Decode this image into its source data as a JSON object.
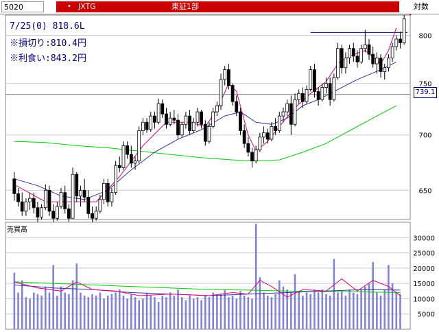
{
  "header": {
    "code": "5020",
    "marker": "•",
    "name": "JXTG",
    "market": "東証1部",
    "scale_label": "対数"
  },
  "info": {
    "line1": "7/25(0) 818.6L",
    "line2": "※損切り:810.4円",
    "line3": "※利食い:843.2円"
  },
  "price_box": "739.1",
  "volume_label": "売買高",
  "colors": {
    "header_bar": "#cc0000",
    "info_text": "#000080",
    "up_candle": "#ffffff",
    "down_candle": "#000000",
    "ma_short": "#e0007a",
    "ma_mid": "#3333aa",
    "ma_long": "#00cc00",
    "volume_bar": "#8080e0",
    "marker": "#ff0000"
  },
  "chart_data": [
    {
      "type": "candlestick",
      "title": "",
      "scale": "log",
      "ylim": [
        625,
        822
      ],
      "yticks": [
        650,
        700,
        750,
        800
      ],
      "grid": true,
      "resistance_line": 803,
      "candles": [
        [
          660,
          666,
          641,
          647
        ],
        [
          647,
          652,
          636,
          640
        ],
        [
          640,
          648,
          628,
          632
        ],
        [
          632,
          643,
          628,
          640
        ],
        [
          640,
          648,
          633,
          643
        ],
        [
          643,
          648,
          630,
          635
        ],
        [
          635,
          640,
          623,
          627
        ],
        [
          627,
          638,
          625,
          635
        ],
        [
          635,
          655,
          633,
          650
        ],
        [
          650,
          654,
          628,
          632
        ],
        [
          632,
          638,
          623,
          626
        ],
        [
          626,
          640,
          624,
          636
        ],
        [
          636,
          652,
          634,
          648
        ],
        [
          648,
          654,
          630,
          634
        ],
        [
          634,
          638,
          622,
          626
        ],
        [
          626,
          670,
          626,
          664
        ],
        [
          664,
          666,
          640,
          645
        ],
        [
          645,
          654,
          636,
          650
        ],
        [
          650,
          660,
          640,
          644
        ],
        [
          644,
          650,
          626,
          630
        ],
        [
          630,
          636,
          622,
          626
        ],
        [
          626,
          636,
          624,
          632
        ],
        [
          632,
          646,
          630,
          642
        ],
        [
          642,
          660,
          638,
          656
        ],
        [
          656,
          660,
          636,
          640
        ],
        [
          640,
          652,
          636,
          648
        ],
        [
          648,
          676,
          646,
          672
        ],
        [
          672,
          680,
          666,
          670
        ],
        [
          670,
          694,
          668,
          690
        ],
        [
          690,
          694,
          678,
          682
        ],
        [
          682,
          690,
          670,
          674
        ],
        [
          674,
          680,
          668,
          676
        ],
        [
          676,
          708,
          674,
          704
        ],
        [
          704,
          716,
          700,
          712
        ],
        [
          712,
          716,
          702,
          705
        ],
        [
          705,
          722,
          703,
          718
        ],
        [
          718,
          722,
          706,
          712
        ],
        [
          712,
          735,
          710,
          730
        ],
        [
          730,
          734,
          716,
          720
        ],
        [
          720,
          726,
          706,
          710
        ],
        [
          710,
          722,
          708,
          716
        ],
        [
          716,
          724,
          710,
          714
        ],
        [
          714,
          720,
          696,
          700
        ],
        [
          700,
          712,
          698,
          710
        ],
        [
          710,
          722,
          706,
          718
        ],
        [
          718,
          724,
          700,
          704
        ],
        [
          704,
          716,
          702,
          712
        ],
        [
          712,
          726,
          708,
          722
        ],
        [
          722,
          724,
          706,
          710
        ],
        [
          710,
          714,
          690,
          694
        ],
        [
          694,
          712,
          692,
          708
        ],
        [
          708,
          726,
          706,
          722
        ],
        [
          722,
          732,
          718,
          728
        ],
        [
          728,
          760,
          724,
          754
        ],
        [
          754,
          768,
          748,
          764
        ],
        [
          764,
          770,
          744,
          748
        ],
        [
          748,
          750,
          728,
          732
        ],
        [
          732,
          738,
          718,
          722
        ],
        [
          722,
          726,
          700,
          704
        ],
        [
          704,
          710,
          688,
          692
        ],
        [
          692,
          698,
          680,
          684
        ],
        [
          684,
          688,
          670,
          676
        ],
        [
          676,
          690,
          674,
          686
        ],
        [
          686,
          702,
          684,
          698
        ],
        [
          698,
          708,
          692,
          702
        ],
        [
          702,
          706,
          692,
          696
        ],
        [
          696,
          712,
          694,
          708
        ],
        [
          708,
          716,
          700,
          704
        ],
        [
          704,
          722,
          702,
          718
        ],
        [
          718,
          726,
          712,
          722
        ],
        [
          722,
          734,
          718,
          730
        ],
        [
          730,
          738,
          700,
          710
        ],
        [
          710,
          740,
          708,
          734
        ],
        [
          734,
          744,
          730,
          740
        ],
        [
          740,
          746,
          726,
          732
        ],
        [
          732,
          748,
          730,
          744
        ],
        [
          744,
          768,
          742,
          764
        ],
        [
          764,
          770,
          736,
          742
        ],
        [
          742,
          746,
          728,
          734
        ],
        [
          734,
          750,
          732,
          746
        ],
        [
          746,
          756,
          740,
          750
        ],
        [
          750,
          756,
          728,
          734
        ],
        [
          734,
          760,
          732,
          756
        ],
        [
          756,
          792,
          754,
          786
        ],
        [
          786,
          790,
          760,
          766
        ],
        [
          766,
          782,
          760,
          776
        ],
        [
          776,
          790,
          770,
          786
        ],
        [
          786,
          792,
          772,
          778
        ],
        [
          778,
          784,
          766,
          772
        ],
        [
          772,
          790,
          770,
          786
        ],
        [
          786,
          806,
          782,
          790
        ],
        [
          790,
          796,
          774,
          780
        ],
        [
          780,
          788,
          766,
          770
        ],
        [
          770,
          782,
          760,
          776
        ],
        [
          776,
          780,
          756,
          762
        ],
        [
          762,
          770,
          754,
          766
        ],
        [
          766,
          780,
          762,
          776
        ],
        [
          776,
          792,
          772,
          788
        ],
        [
          788,
          800,
          784,
          796
        ],
        [
          796,
          804,
          786,
          792
        ],
        [
          792,
          822,
          790,
          818
        ]
      ],
      "ma_short": [
        [
          0,
          655
        ],
        [
          8,
          640
        ],
        [
          15,
          640
        ],
        [
          21,
          640
        ],
        [
          27,
          662
        ],
        [
          33,
          690
        ],
        [
          39,
          712
        ],
        [
          45,
          712
        ],
        [
          49,
          708
        ],
        [
          52,
          724
        ],
        [
          55,
          750
        ],
        [
          57,
          742
        ],
        [
          60,
          700
        ],
        [
          62,
          685
        ],
        [
          65,
          694
        ],
        [
          68,
          708
        ],
        [
          72,
          726
        ],
        [
          76,
          740
        ],
        [
          80,
          752
        ],
        [
          83,
          770
        ],
        [
          86,
          778
        ],
        [
          90,
          784
        ],
        [
          94,
          770
        ],
        [
          96,
          784
        ],
        [
          98,
          808
        ]
      ],
      "ma_mid": [
        [
          0,
          660
        ],
        [
          6,
          654
        ],
        [
          12,
          645
        ],
        [
          18,
          642
        ],
        [
          24,
          650
        ],
        [
          30,
          668
        ],
        [
          36,
          684
        ],
        [
          42,
          696
        ],
        [
          48,
          705
        ],
        [
          54,
          718
        ],
        [
          58,
          722
        ],
        [
          62,
          712
        ],
        [
          66,
          710
        ],
        [
          70,
          716
        ],
        [
          74,
          728
        ],
        [
          78,
          734
        ],
        [
          82,
          742
        ],
        [
          88,
          754
        ],
        [
          94,
          764
        ],
        [
          98,
          772
        ]
      ],
      "ma_long": [
        [
          0,
          694
        ],
        [
          8,
          693
        ],
        [
          16,
          690
        ],
        [
          24,
          688
        ],
        [
          32,
          685
        ],
        [
          40,
          682
        ],
        [
          48,
          679
        ],
        [
          56,
          677
        ],
        [
          62,
          676
        ],
        [
          68,
          677
        ],
        [
          74,
          684
        ],
        [
          80,
          692
        ],
        [
          86,
          704
        ],
        [
          92,
          716
        ],
        [
          98,
          728
        ]
      ],
      "resistance_start": 76
    },
    {
      "type": "bar",
      "title": "",
      "ylim": [
        0,
        35000
      ],
      "yticks": [
        5000,
        10000,
        15000,
        20000,
        25000,
        30000
      ],
      "values": [
        18500,
        12000,
        16000,
        10500,
        10000,
        12000,
        11500,
        11000,
        14000,
        12000,
        21000,
        11000,
        14000,
        12000,
        11500,
        16000,
        21500,
        12000,
        11000,
        10500,
        11500,
        11000,
        12000,
        10000,
        11000,
        11500,
        12000,
        13000,
        11000,
        10000,
        11500,
        10500,
        9500,
        10000,
        12000,
        11000,
        10500,
        9000,
        11000,
        10500,
        12000,
        11000,
        13000,
        10500,
        9500,
        11000,
        10000,
        10500,
        9500,
        11000,
        10500,
        12000,
        11000,
        11500,
        13000,
        10500,
        11000,
        10000,
        12500,
        11000,
        10500,
        10000,
        34500,
        17000,
        12000,
        11000,
        10500,
        11500,
        16000,
        14000,
        13000,
        12000,
        18000,
        12500,
        11000,
        12000,
        11500,
        13000,
        12000,
        13000,
        11500,
        11000,
        23000,
        12000,
        12500,
        11000,
        13000,
        12000,
        11500,
        13000,
        14000,
        15000,
        22000,
        12000,
        11000,
        13000,
        21000,
        15000,
        12000,
        11500
      ],
      "ma_short": [
        [
          0,
          15500
        ],
        [
          6,
          13500
        ],
        [
          12,
          12500
        ],
        [
          16,
          15500
        ],
        [
          20,
          13000
        ],
        [
          26,
          12500
        ],
        [
          32,
          11000
        ],
        [
          40,
          11500
        ],
        [
          50,
          11000
        ],
        [
          56,
          12000
        ],
        [
          60,
          11500
        ],
        [
          63,
          16000
        ],
        [
          66,
          14000
        ],
        [
          70,
          10500
        ],
        [
          74,
          13000
        ],
        [
          80,
          12500
        ],
        [
          84,
          16500
        ],
        [
          88,
          12500
        ],
        [
          92,
          16000
        ],
        [
          96,
          14000
        ],
        [
          99,
          11000
        ]
      ],
      "ma_mid": [
        [
          0,
          14500
        ],
        [
          10,
          13500
        ],
        [
          20,
          13000
        ],
        [
          30,
          12000
        ],
        [
          40,
          11500
        ],
        [
          50,
          11000
        ],
        [
          60,
          11500
        ],
        [
          70,
          12000
        ],
        [
          80,
          12500
        ],
        [
          90,
          13000
        ],
        [
          99,
          12800
        ]
      ],
      "ma_long": [
        [
          0,
          15500
        ],
        [
          10,
          15000
        ],
        [
          20,
          14500
        ],
        [
          30,
          14000
        ],
        [
          40,
          13500
        ],
        [
          50,
          13000
        ],
        [
          60,
          12800
        ],
        [
          70,
          12500
        ],
        [
          80,
          12300
        ],
        [
          90,
          12200
        ],
        [
          99,
          12000
        ]
      ]
    }
  ]
}
